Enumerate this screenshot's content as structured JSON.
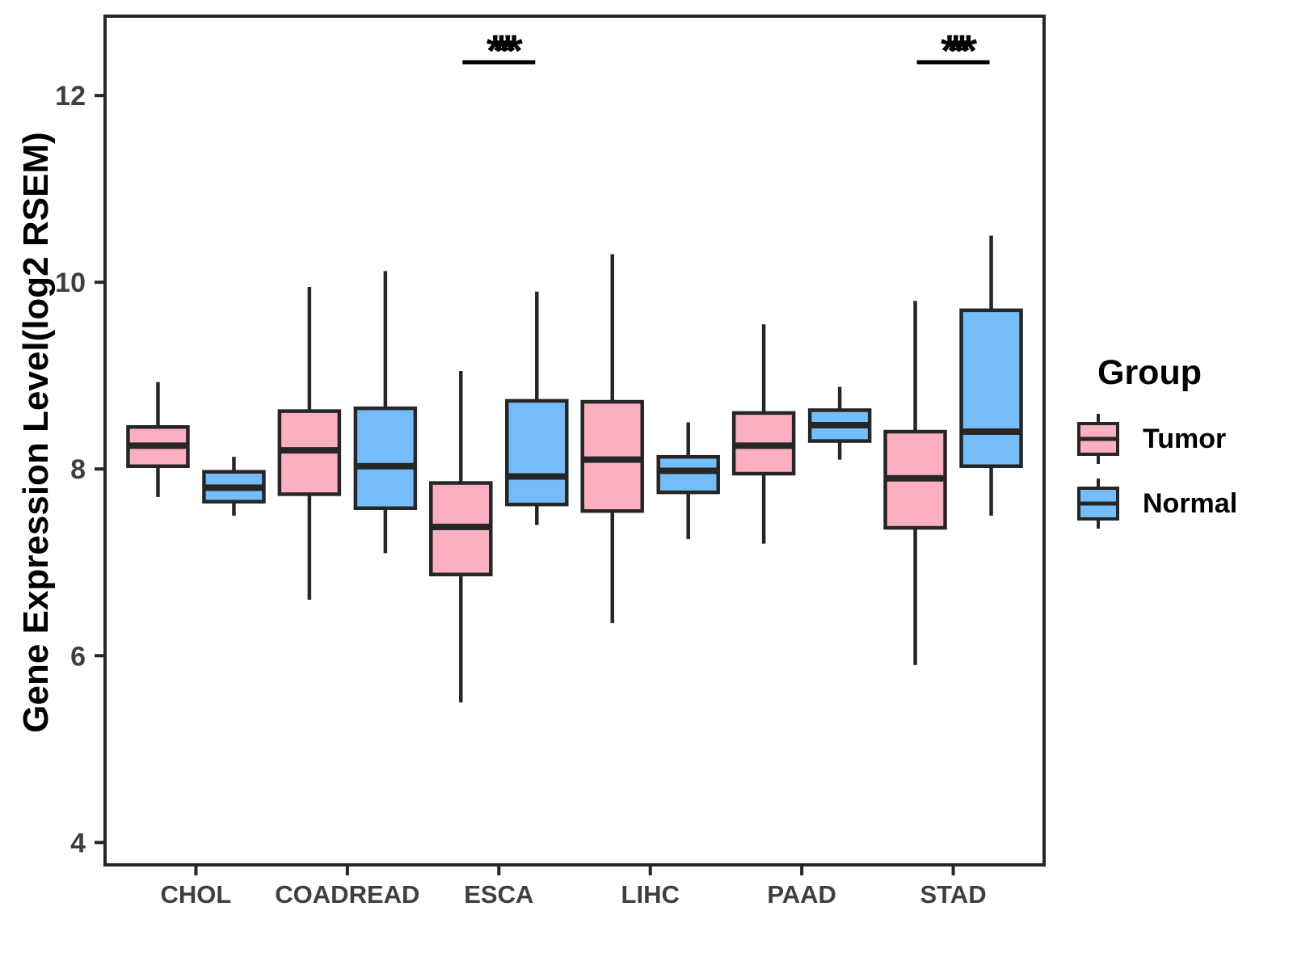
{
  "y_axis": {
    "label": "Gene Expression Level(log2 RSEM)",
    "ticks": [
      4,
      6,
      8,
      10,
      12
    ]
  },
  "x_axis": {
    "categories": [
      "CHOL",
      "COADREAD",
      "ESCA",
      "LIHC",
      "PAAD",
      "STAD"
    ]
  },
  "legend": {
    "title": "Group",
    "entries": [
      {
        "label": "Tumor",
        "color": "#FBAFC0"
      },
      {
        "label": "Normal",
        "color": "#74BDF8"
      }
    ]
  },
  "colors": {
    "tumor_fill": "#FBAFC0",
    "normal_fill": "#74BDF8",
    "line": "#262626",
    "axis_text": "#3F3F3F",
    "title_text": "#000000"
  },
  "chart_data": {
    "type": "boxplot",
    "title": "",
    "xlabel": "",
    "ylabel": "Gene Expression Level(log2 RSEM)",
    "yticks": [
      4,
      6,
      8,
      10,
      12
    ],
    "ylim": [
      3.76,
      12.85
    ],
    "grid": false,
    "legend_position": "right",
    "categories": [
      "CHOL",
      "COADREAD",
      "ESCA",
      "LIHC",
      "PAAD",
      "STAD"
    ],
    "series": [
      {
        "name": "Tumor",
        "color": "#FBAFC0",
        "boxes": [
          {
            "category": "CHOL",
            "min": 7.7,
            "q1": 8.03,
            "median": 8.25,
            "q3": 8.45,
            "max": 8.93
          },
          {
            "category": "COADREAD",
            "min": 6.6,
            "q1": 7.73,
            "median": 8.2,
            "q3": 8.62,
            "max": 9.95
          },
          {
            "category": "ESCA",
            "min": 5.5,
            "q1": 6.87,
            "median": 7.38,
            "q3": 7.85,
            "max": 9.05
          },
          {
            "category": "LIHC",
            "min": 6.35,
            "q1": 7.55,
            "median": 8.1,
            "q3": 8.72,
            "max": 10.3
          },
          {
            "category": "PAAD",
            "min": 7.2,
            "q1": 7.95,
            "median": 8.25,
            "q3": 8.6,
            "max": 9.55
          },
          {
            "category": "STAD",
            "min": 5.9,
            "q1": 7.37,
            "median": 7.9,
            "q3": 8.4,
            "max": 9.8
          }
        ]
      },
      {
        "name": "Normal",
        "color": "#74BDF8",
        "boxes": [
          {
            "category": "CHOL",
            "min": 7.5,
            "q1": 7.65,
            "median": 7.8,
            "q3": 7.97,
            "max": 8.13
          },
          {
            "category": "COADREAD",
            "min": 7.1,
            "q1": 7.58,
            "median": 8.03,
            "q3": 8.65,
            "max": 10.12
          },
          {
            "category": "ESCA",
            "min": 7.4,
            "q1": 7.62,
            "median": 7.92,
            "q3": 8.73,
            "max": 9.9
          },
          {
            "category": "LIHC",
            "min": 7.25,
            "q1": 7.75,
            "median": 7.98,
            "q3": 8.13,
            "max": 8.5
          },
          {
            "category": "PAAD",
            "min": 8.1,
            "q1": 8.3,
            "median": 8.47,
            "q3": 8.63,
            "max": 8.88
          },
          {
            "category": "STAD",
            "min": 7.5,
            "q1": 8.03,
            "median": 8.4,
            "q3": 9.7,
            "max": 10.5
          }
        ]
      }
    ],
    "annotations": [
      {
        "category": "ESCA",
        "text": "****"
      },
      {
        "category": "STAD",
        "text": "****"
      }
    ]
  }
}
